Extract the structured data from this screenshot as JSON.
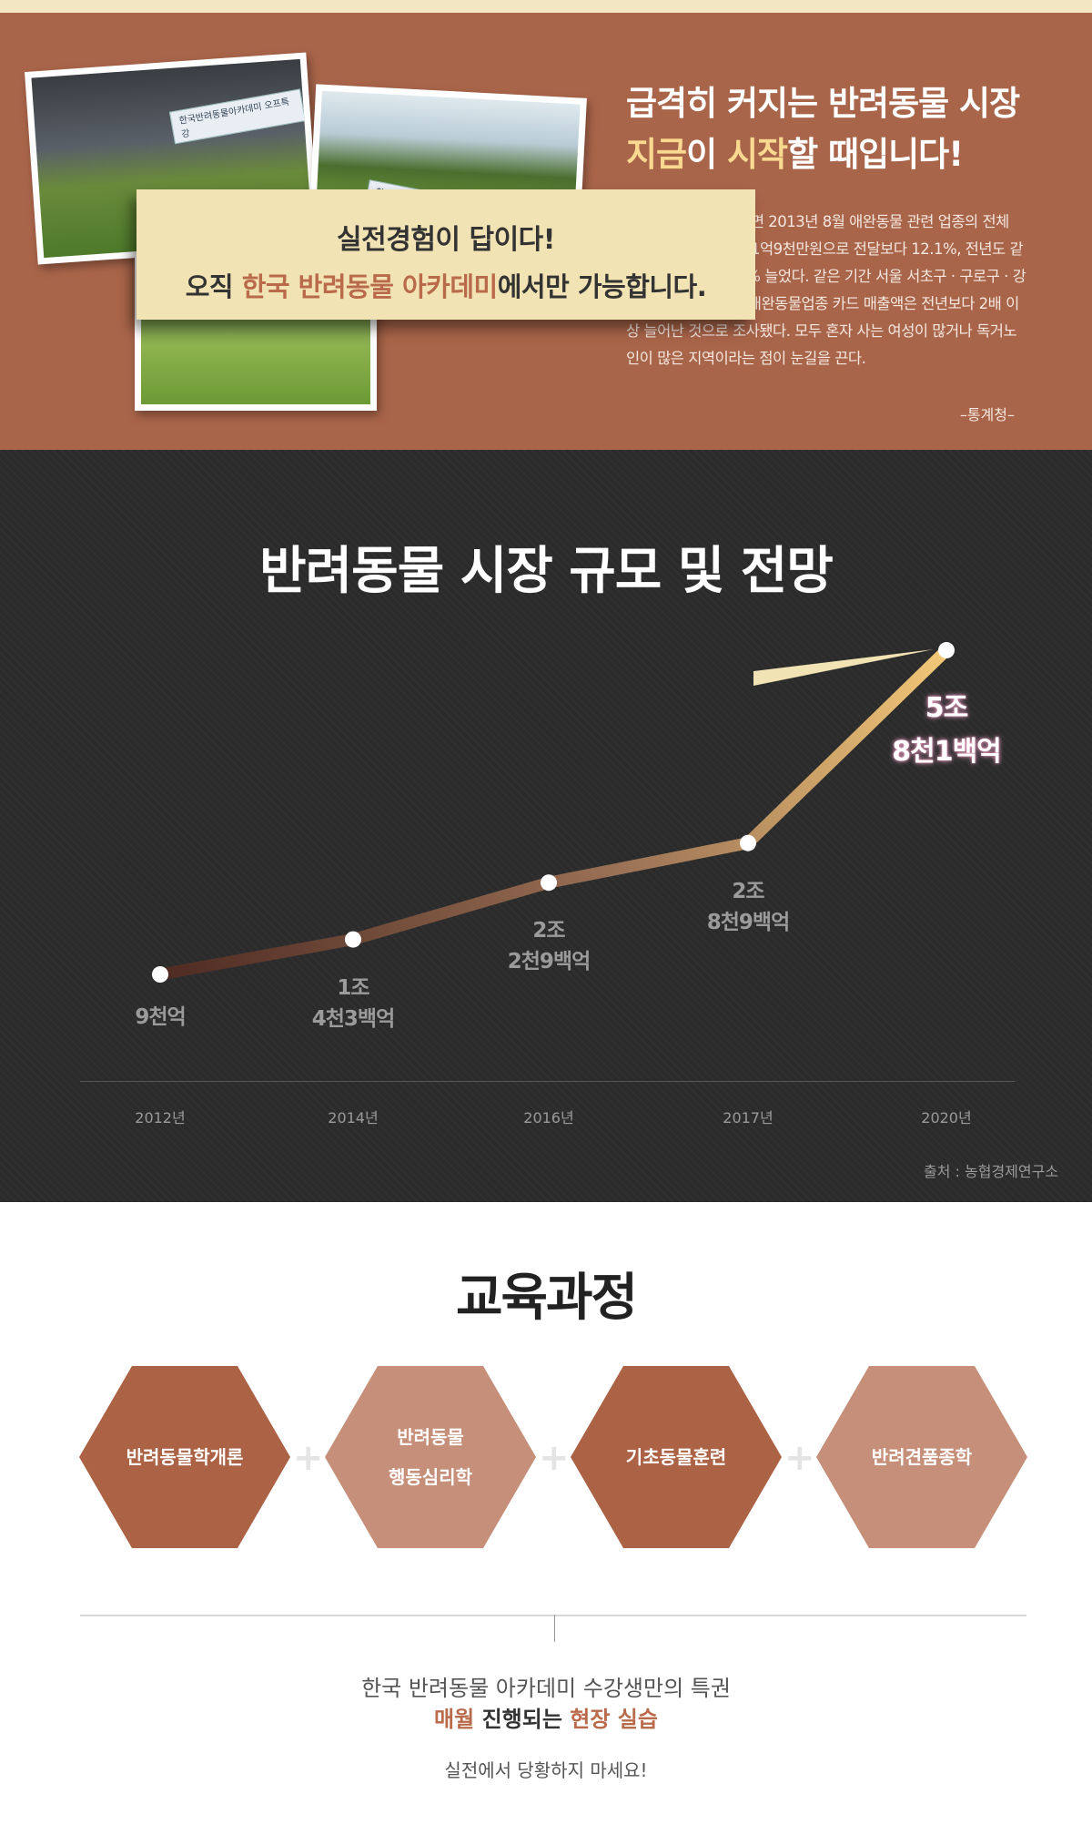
{
  "intro": {
    "headline_line1": "급격히 커지는 반려동물 시장",
    "headline_hl1": "지금",
    "headline_mid": "이 ",
    "headline_hl2": "시작",
    "headline_end": "할 때입니다!",
    "paragraph": "여신금융협회에 따르면 2013년 8월 애완동물 관련 업종의 전체 카드 사용액은 총 831억9천만원으로 전달보다 12.1%, 전년도 같은 기간보다는 20.9% 늘었다. 같은 기간 서울 서초구 · 구로구 · 강서구에서 BC카드의 애완동물업종 카드 매출액은 전년보다 2배 이상 늘어난 것으로 조사됐다. 모두 혼자 사는 여성이 많거나 독거노인이 많은 지역이라는 점이 눈길을 끈다.",
    "source": "–통계청–",
    "photo_banner_1": "한국반려동물아카데미 오프특강",
    "photo_banner_2": "한국반려동물아카데미 오프특강"
  },
  "market": {
    "title": "반려동물 시장 규모 및 전망",
    "callout_line1": "실전경험이 답이다!",
    "callout_pre": "오직 ",
    "callout_hl": "한국 반려동물 아카데미",
    "callout_post": "에서만 가능합니다.",
    "source": "출처 : 농협경제연구소"
  },
  "chart_data": {
    "type": "line",
    "categories": [
      "2012년",
      "2014년",
      "2016년",
      "2017년",
      "2020년"
    ],
    "values": [
      0.9,
      1.43,
      2.29,
      2.89,
      5.81
    ],
    "value_unit": "조원",
    "value_labels": [
      [
        "",
        "9천억"
      ],
      [
        "1조",
        "4천3백억"
      ],
      [
        "2조",
        "2천9백억"
      ],
      [
        "2조",
        "8천9백억"
      ],
      [
        "5조",
        "8천1백억"
      ]
    ],
    "title": "반려동물 시장 규모 및 전망",
    "colors": {
      "start": "#4e2a22",
      "end": "#f3c877",
      "point": "#ffffff"
    }
  },
  "curriculum": {
    "title": "교육과정",
    "courses": [
      {
        "line1": "반려동물학개론",
        "line2": ""
      },
      {
        "line1": "반려동물",
        "line2": "행동심리학"
      },
      {
        "line1": "기초동물훈련",
        "line2": ""
      },
      {
        "line1": "반려견품종학",
        "line2": ""
      }
    ],
    "plus": "+",
    "note_line1": "한국 반려동물 아카데미 수강생만의 특권",
    "note_hl1": "매월",
    "note_mid": " 진행되는 ",
    "note_hl2": "현장 실습",
    "note_line3": "실전에서 당황하지 마세요!"
  },
  "colors": {
    "brown": "#a9654a",
    "dark_bg": "#2b2b2b",
    "cream": "#f2e3b4",
    "accent": "#b96a4a",
    "hex_dark": "#ab6245",
    "hex_light": "#c58f7a"
  }
}
